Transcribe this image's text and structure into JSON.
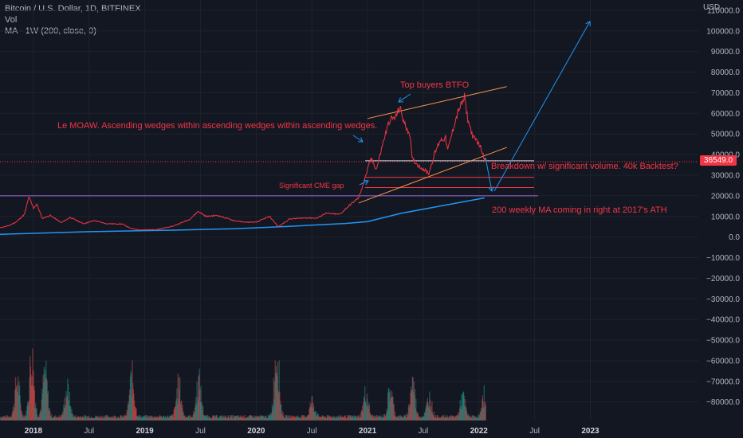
{
  "legend": {
    "symbol": "Bitcoin / U.S. Dollar, 1D, BITFINEX",
    "vol": "Vol",
    "ma": "MA · 1W (200, close, 0)"
  },
  "price_tag": "36549.0",
  "currency": "USD",
  "annotations": {
    "top_buyers": "Top buyers BTFO",
    "wedges": "Le MOAW. Ascending wedges within ascending wedges within ascending wedges.",
    "cme_gap": "Significant CME gap",
    "breakdown": "Breakdown w/ significant volume. 40k Backtest?",
    "ma_note": "200 weekly MA coming in right at 2017's ATH"
  },
  "colors": {
    "background": "#131722",
    "price_line": "#f23645",
    "ma_line": "#2196f3",
    "wedge_line": "#f7924a",
    "annotation_text": "#f23645",
    "resistance": "#9c6ade"
  },
  "chart_data": {
    "type": "line",
    "title": "Bitcoin / U.S. Dollar, 1D, BITFINEX",
    "y_ticks": [
      110000,
      100000,
      90000,
      80000,
      70000,
      60000,
      50000,
      40000,
      30000,
      20000,
      10000,
      0,
      -10000,
      -20000,
      -30000,
      -40000,
      -50000,
      -60000,
      -70000,
      -80000
    ],
    "y_tick_labels": [
      "110000.0",
      "100000.0",
      "90000.0",
      "80000.0",
      "70000.0",
      "60000.0",
      "50000.0",
      "40000.0",
      "30000.0",
      "20000.0",
      "10000.0",
      "0.0",
      "−10000.0",
      "−20000.0",
      "−30000.0",
      "−40000.0",
      "−50000.0",
      "−60000.0",
      "−70000.0",
      "−80000.0"
    ],
    "ylim": [
      -89000,
      115000
    ],
    "x_ticks": [
      {
        "t": 2018.0,
        "label": "2018",
        "bold": true
      },
      {
        "t": 2018.5,
        "label": "Jul",
        "bold": false
      },
      {
        "t": 2019.0,
        "label": "2019",
        "bold": true
      },
      {
        "t": 2019.5,
        "label": "Jul",
        "bold": false
      },
      {
        "t": 2020.0,
        "label": "2020",
        "bold": true
      },
      {
        "t": 2020.5,
        "label": "Jul",
        "bold": false
      },
      {
        "t": 2021.0,
        "label": "2021",
        "bold": true
      },
      {
        "t": 2021.5,
        "label": "Jul",
        "bold": false
      },
      {
        "t": 2022.0,
        "label": "2022",
        "bold": true
      },
      {
        "t": 2022.5,
        "label": "Jul",
        "bold": false
      },
      {
        "t": 2023.0,
        "label": "2023",
        "bold": true
      }
    ],
    "xlim": [
      2017.7,
      2023.97
    ],
    "series": [
      {
        "name": "Bitcoin / U.S. Dollar",
        "points": [
          [
            2017.7,
            4500
          ],
          [
            2017.78,
            5500
          ],
          [
            2017.85,
            7500
          ],
          [
            2017.92,
            11000
          ],
          [
            2017.96,
            19500
          ],
          [
            2018.0,
            14000
          ],
          [
            2018.03,
            16000
          ],
          [
            2018.08,
            9000
          ],
          [
            2018.15,
            10500
          ],
          [
            2018.25,
            7000
          ],
          [
            2018.33,
            9500
          ],
          [
            2018.45,
            6500
          ],
          [
            2018.55,
            8000
          ],
          [
            2018.65,
            6500
          ],
          [
            2018.8,
            6300
          ],
          [
            2018.88,
            4000
          ],
          [
            2018.96,
            3500
          ],
          [
            2019.1,
            3600
          ],
          [
            2019.25,
            5200
          ],
          [
            2019.4,
            8500
          ],
          [
            2019.48,
            12500
          ],
          [
            2019.55,
            10000
          ],
          [
            2019.65,
            10500
          ],
          [
            2019.8,
            8000
          ],
          [
            2019.9,
            7200
          ],
          [
            2020.0,
            7200
          ],
          [
            2020.12,
            10000
          ],
          [
            2020.2,
            5000
          ],
          [
            2020.3,
            8800
          ],
          [
            2020.45,
            9300
          ],
          [
            2020.55,
            9200
          ],
          [
            2020.62,
            11500
          ],
          [
            2020.75,
            11000
          ],
          [
            2020.85,
            16000
          ],
          [
            2020.92,
            19000
          ],
          [
            2020.98,
            29000
          ],
          [
            2021.03,
            38000
          ],
          [
            2021.08,
            33000
          ],
          [
            2021.15,
            48000
          ],
          [
            2021.2,
            57000
          ],
          [
            2021.25,
            58000
          ],
          [
            2021.29,
            63000
          ],
          [
            2021.33,
            55000
          ],
          [
            2021.38,
            50000
          ],
          [
            2021.4,
            38000
          ],
          [
            2021.45,
            35000
          ],
          [
            2021.5,
            33000
          ],
          [
            2021.55,
            31000
          ],
          [
            2021.6,
            40000
          ],
          [
            2021.65,
            47000
          ],
          [
            2021.7,
            48000
          ],
          [
            2021.72,
            42000
          ],
          [
            2021.78,
            55000
          ],
          [
            2021.82,
            62000
          ],
          [
            2021.86,
            66000
          ],
          [
            2021.87,
            68000
          ],
          [
            2021.9,
            57000
          ],
          [
            2021.95,
            48000
          ],
          [
            2021.98,
            47000
          ],
          [
            2022.02,
            43000
          ],
          [
            2022.06,
            36549
          ]
        ]
      },
      {
        "name": "MA · 1W (200, close, 0)",
        "points": [
          [
            2017.7,
            1300
          ],
          [
            2018.5,
            2600
          ],
          [
            2019.3,
            3400
          ],
          [
            2019.8,
            4000
          ],
          [
            2020.3,
            5200
          ],
          [
            2020.8,
            6600
          ],
          [
            2021.0,
            7500
          ],
          [
            2021.3,
            11500
          ],
          [
            2021.6,
            14500
          ],
          [
            2021.9,
            17500
          ],
          [
            2022.05,
            19000
          ]
        ]
      }
    ],
    "volume": {
      "name": "Vol",
      "scale_max": 1,
      "peaks": [
        [
          2017.85,
          0.45
        ],
        [
          2017.98,
          0.75
        ],
        [
          2018.1,
          0.55
        ],
        [
          2018.3,
          0.35
        ],
        [
          2018.88,
          0.5
        ],
        [
          2019.3,
          0.4
        ],
        [
          2019.48,
          0.45
        ],
        [
          2020.18,
          0.85
        ],
        [
          2020.5,
          0.2
        ],
        [
          2020.98,
          0.3
        ],
        [
          2021.2,
          0.35
        ],
        [
          2021.4,
          0.45
        ],
        [
          2021.55,
          0.25
        ],
        [
          2021.85,
          0.25
        ],
        [
          2022.05,
          0.3
        ]
      ]
    }
  }
}
